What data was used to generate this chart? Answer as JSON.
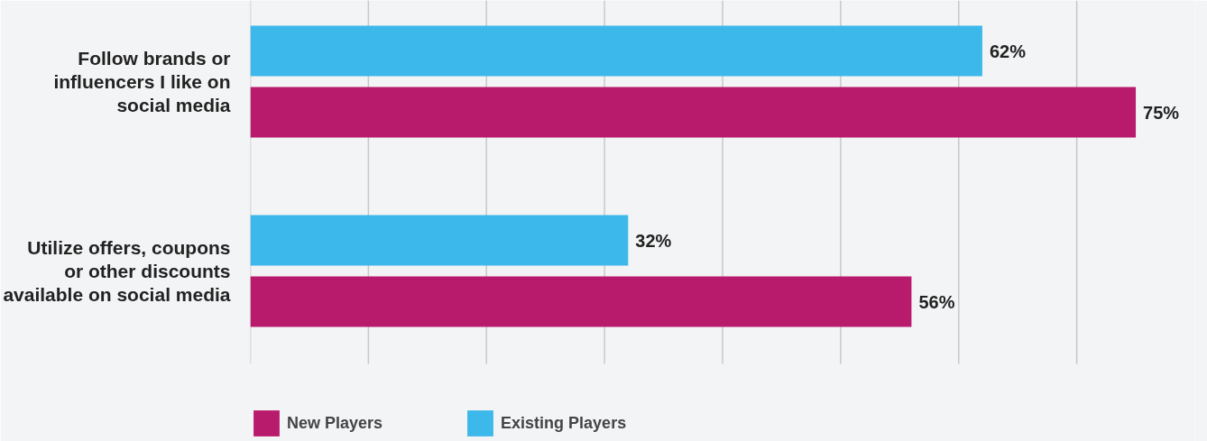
{
  "chart_data": {
    "type": "bar",
    "orientation": "horizontal",
    "categories": [
      "Follow brands or influencers I like on social media",
      "Utilize offers, coupons or other discounts available on social media"
    ],
    "series": [
      {
        "name": "New Players",
        "color": "#b81a6c",
        "values": [
          75,
          56
        ],
        "value_labels": [
          "75%",
          "56%"
        ]
      },
      {
        "name": "Existing Players",
        "color": "#3cb8ea",
        "values": [
          62,
          32
        ],
        "value_labels": [
          "62%",
          "32%"
        ]
      }
    ],
    "xlim": [
      0,
      80
    ],
    "xticks": [
      {
        "value": 0,
        "label": null
      },
      {
        "value": 10,
        "label": null
      },
      {
        "value": 20,
        "label": null
      },
      {
        "value": 30,
        "label": null
      },
      {
        "value": 40,
        "label": null
      },
      {
        "value": 50,
        "label": null
      },
      {
        "value": 60,
        "label": null
      },
      {
        "value": 70,
        "label": null
      }
    ],
    "tick_labels": "y",
    "grid": "x",
    "legend": "bottom"
  }
}
